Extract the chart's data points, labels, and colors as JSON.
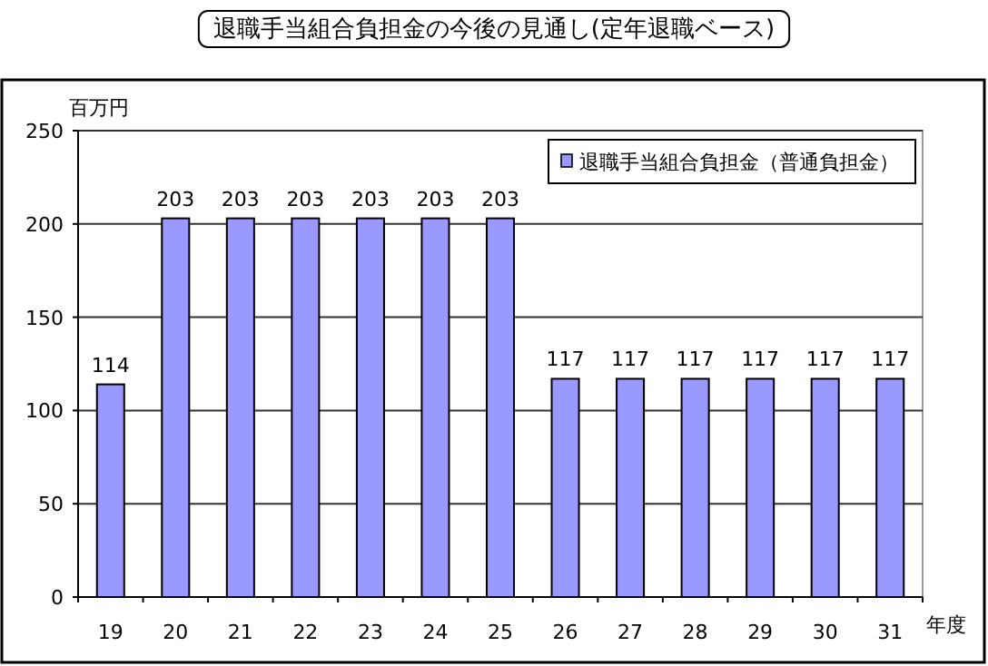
{
  "chart_data": {
    "type": "bar",
    "title": "退職手当組合負担金の今後の見通し(定年退職ベース)",
    "ylabel": "百万円",
    "xlabel": "年度",
    "categories": [
      "19",
      "20",
      "21",
      "22",
      "23",
      "24",
      "25",
      "26",
      "27",
      "28",
      "29",
      "30",
      "31"
    ],
    "series": [
      {
        "name": "退職手当組合負担金（普通負担金）",
        "color": "#9999ff",
        "values": [
          114,
          203,
          203,
          203,
          203,
          203,
          203,
          117,
          117,
          117,
          117,
          117,
          117
        ]
      }
    ],
    "ylim": [
      0,
      250
    ],
    "yticks": [
      0,
      50,
      100,
      150,
      200,
      250
    ],
    "grid": "y",
    "legend": "top right",
    "data_labels": true
  }
}
